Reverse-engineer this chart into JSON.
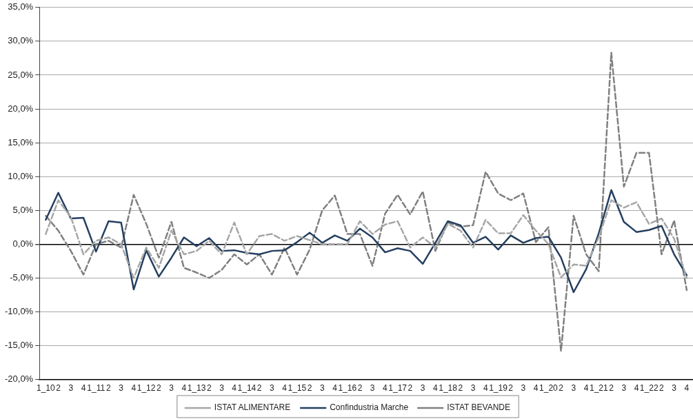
{
  "chart_data": {
    "type": "line",
    "categories": [
      "1_10",
      "2",
      "3",
      "4",
      "1_11",
      "2",
      "3",
      "4",
      "1_12",
      "2",
      "3",
      "4",
      "1_13",
      "2",
      "3",
      "4",
      "1_14",
      "2",
      "3",
      "4",
      "1_15",
      "2",
      "3",
      "4",
      "1_16",
      "2",
      "3",
      "4",
      "1_17",
      "2",
      "3",
      "4",
      "1_18",
      "2",
      "3",
      "4",
      "1_19",
      "2",
      "3",
      "4",
      "1_20",
      "2",
      "3",
      "4",
      "1_21",
      "2",
      "3",
      "4",
      "1_22",
      "2",
      "3",
      "4"
    ],
    "series": [
      {
        "name": "ISTAT ALIMENTARE",
        "color": "#a6a6a6",
        "line_style": "dashed",
        "values": [
          1.5,
          6.5,
          4,
          -1.5,
          0.5,
          1.0,
          0,
          -5,
          -0.5,
          -3.5,
          2,
          -1.5,
          -1,
          0.5,
          -1.5,
          3.2,
          -1.5,
          1.2,
          1.5,
          0.5,
          1.2,
          0.6,
          0,
          0,
          0,
          3.4,
          1.5,
          2.9,
          3.4,
          -0.5,
          1.0,
          -0.5,
          3.0,
          2.0,
          -0.5,
          3.6,
          1.6,
          1.6,
          4.3,
          2.0,
          0,
          -4.9,
          -3.0,
          -3.2,
          1.0,
          6.5,
          5.4,
          6.2,
          3.0,
          3.8,
          0.8,
          -5
        ]
      },
      {
        "name": "Confindustria Marche",
        "color": "#243f60",
        "line_style": "solid",
        "values": [
          3.6,
          7.6,
          3.8,
          3.9,
          -1.1,
          3.4,
          3.2,
          -6.7,
          -0.9,
          -4.8,
          -2.0,
          1.0,
          -0.3,
          0.9,
          -1.0,
          -0.9,
          -1.3,
          -1.5,
          -1.0,
          -0.9,
          0.3,
          1.7,
          0.2,
          1.3,
          0.5,
          2.3,
          1.0,
          -1.2,
          -0.6,
          -1.0,
          -2.9,
          0.2,
          3.4,
          2.8,
          0.2,
          1.1,
          -0.8,
          1.3,
          0.2,
          0.9,
          1.1,
          -2.0,
          -7.1,
          -3.7,
          1.6,
          8.0,
          3.3,
          1.8,
          2.1,
          2.7,
          -1.5,
          -4.6
        ]
      },
      {
        "name": "ISTAT BEVANDE",
        "color": "#808080",
        "line_style": "dashed",
        "values": [
          4.2,
          2,
          -1,
          -4.5,
          0,
          0.5,
          -0.5,
          7.3,
          3,
          -2,
          3.3,
          -3.5,
          -4.2,
          -5,
          -3.8,
          -1.5,
          -3.0,
          -1.5,
          -4.5,
          -0.5,
          -4.5,
          -0.8,
          5,
          7.2,
          1.5,
          1.5,
          -3.2,
          4.5,
          7.3,
          4.4,
          7.8,
          -1.0,
          3.2,
          2.6,
          2.8,
          10.7,
          7.5,
          6.5,
          7.5,
          0.3,
          2.5,
          -15.8,
          4.2,
          -1.5,
          -4.0,
          28.3,
          8.5,
          13.5,
          13.5,
          -1.5,
          3.5,
          -6.8
        ]
      }
    ],
    "ylim": [
      -20,
      35
    ],
    "yticks": [
      {
        "value": -20,
        "label": "-20,0%"
      },
      {
        "value": -15,
        "label": "-15,0%"
      },
      {
        "value": -10,
        "label": "-10,0%"
      },
      {
        "value": -5,
        "label": "-5,0%"
      },
      {
        "value": 0,
        "label": "0,0%"
      },
      {
        "value": 5,
        "label": "5,0%"
      },
      {
        "value": 10,
        "label": "10,0%"
      },
      {
        "value": 15,
        "label": "15,0%"
      },
      {
        "value": 20,
        "label": "20,0%"
      },
      {
        "value": 25,
        "label": "25,0%"
      },
      {
        "value": 30,
        "label": "30,0%"
      },
      {
        "value": 35,
        "label": "35,0%"
      }
    ],
    "grid": "y",
    "legend": "bottom",
    "marker": "none"
  }
}
